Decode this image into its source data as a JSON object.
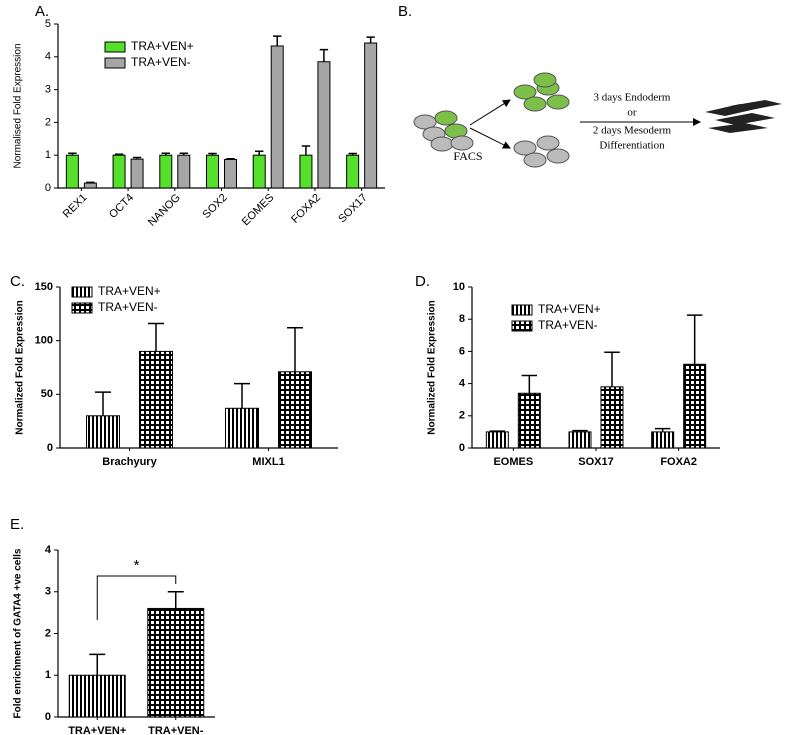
{
  "chart_data": [
    {
      "type": "bar",
      "panel_label": "A.",
      "y_label": "Normalised Fold Expression",
      "categories": [
        "REX1",
        "OCT4",
        "NANOG",
        "SOX2",
        "EOMES",
        "FOXA2",
        "SOX17"
      ],
      "series": [
        {
          "name": "TRA+VEN+",
          "color": "#55e02c",
          "values": [
            1.0,
            1.0,
            1.0,
            1.0,
            1.0,
            1.0,
            1.0
          ],
          "errors": [
            0.06,
            0.03,
            0.06,
            0.05,
            0.12,
            0.28,
            0.05
          ]
        },
        {
          "name": "TRA+VEN-",
          "color": "#a6a6a6",
          "values": [
            0.15,
            0.88,
            1.0,
            0.87,
            4.33,
            3.85,
            4.42
          ],
          "errors": [
            0.02,
            0.05,
            0.06,
            0.02,
            0.3,
            0.37,
            0.18
          ]
        }
      ],
      "ylim": [
        0,
        5
      ],
      "yticks": [
        0,
        1,
        2,
        3,
        4,
        5
      ],
      "legend": "upper left"
    },
    {
      "type": "bar",
      "panel_label": "C.",
      "y_label": "Normalized Fold Expression",
      "categories": [
        "Brachyury",
        "MIXL1"
      ],
      "series": [
        {
          "name": "TRA+VEN+",
          "color": "#000000",
          "pattern": "vertical-stripes",
          "values": [
            30,
            37
          ],
          "errors": [
            22,
            23
          ]
        },
        {
          "name": "TRA+VEN-",
          "color": "#000000",
          "pattern": "grid",
          "values": [
            90,
            71
          ],
          "errors": [
            26,
            41
          ]
        }
      ],
      "ylim": [
        0,
        150
      ],
      "yticks": [
        0,
        50,
        100,
        150
      ],
      "legend": "upper left"
    },
    {
      "type": "bar",
      "panel_label": "D.",
      "y_label": "Normalized Fold Expression",
      "categories": [
        "EOMES",
        "SOX17",
        "FOXA2"
      ],
      "series": [
        {
          "name": "TRA+VEN+",
          "color": "#000000",
          "pattern": "vertical-stripes",
          "values": [
            1.0,
            1.0,
            1.0
          ],
          "errors": [
            0.05,
            0.08,
            0.2
          ]
        },
        {
          "name": "TRA+VEN-",
          "color": "#000000",
          "pattern": "grid",
          "values": [
            3.4,
            3.8,
            5.2
          ],
          "errors": [
            1.1,
            2.15,
            3.05
          ]
        }
      ],
      "ylim": [
        0,
        10
      ],
      "yticks": [
        0,
        2,
        4,
        6,
        8,
        10
      ],
      "legend": "upper left"
    },
    {
      "type": "bar",
      "panel_label": "E.",
      "y_label": "Fold enrichment of GATA4 +ve cells",
      "categories": [
        "TRA+VEN+",
        "TRA+VEN-"
      ],
      "series": [
        {
          "color": "#000000",
          "bar_patterns": [
            "vertical-stripes",
            "grid"
          ],
          "values": [
            1.0,
            2.6
          ],
          "errors": [
            0.5,
            0.4
          ]
        }
      ],
      "ylim": [
        0,
        4
      ],
      "yticks": [
        0,
        1,
        2,
        3,
        4
      ],
      "significance": "*"
    }
  ],
  "diagram_b": {
    "panel_label": "B.",
    "sort_label": "FACS",
    "steps": [
      "3 days Endoderm",
      "or",
      "2 days Mesoderm",
      "Differentiation"
    ]
  }
}
